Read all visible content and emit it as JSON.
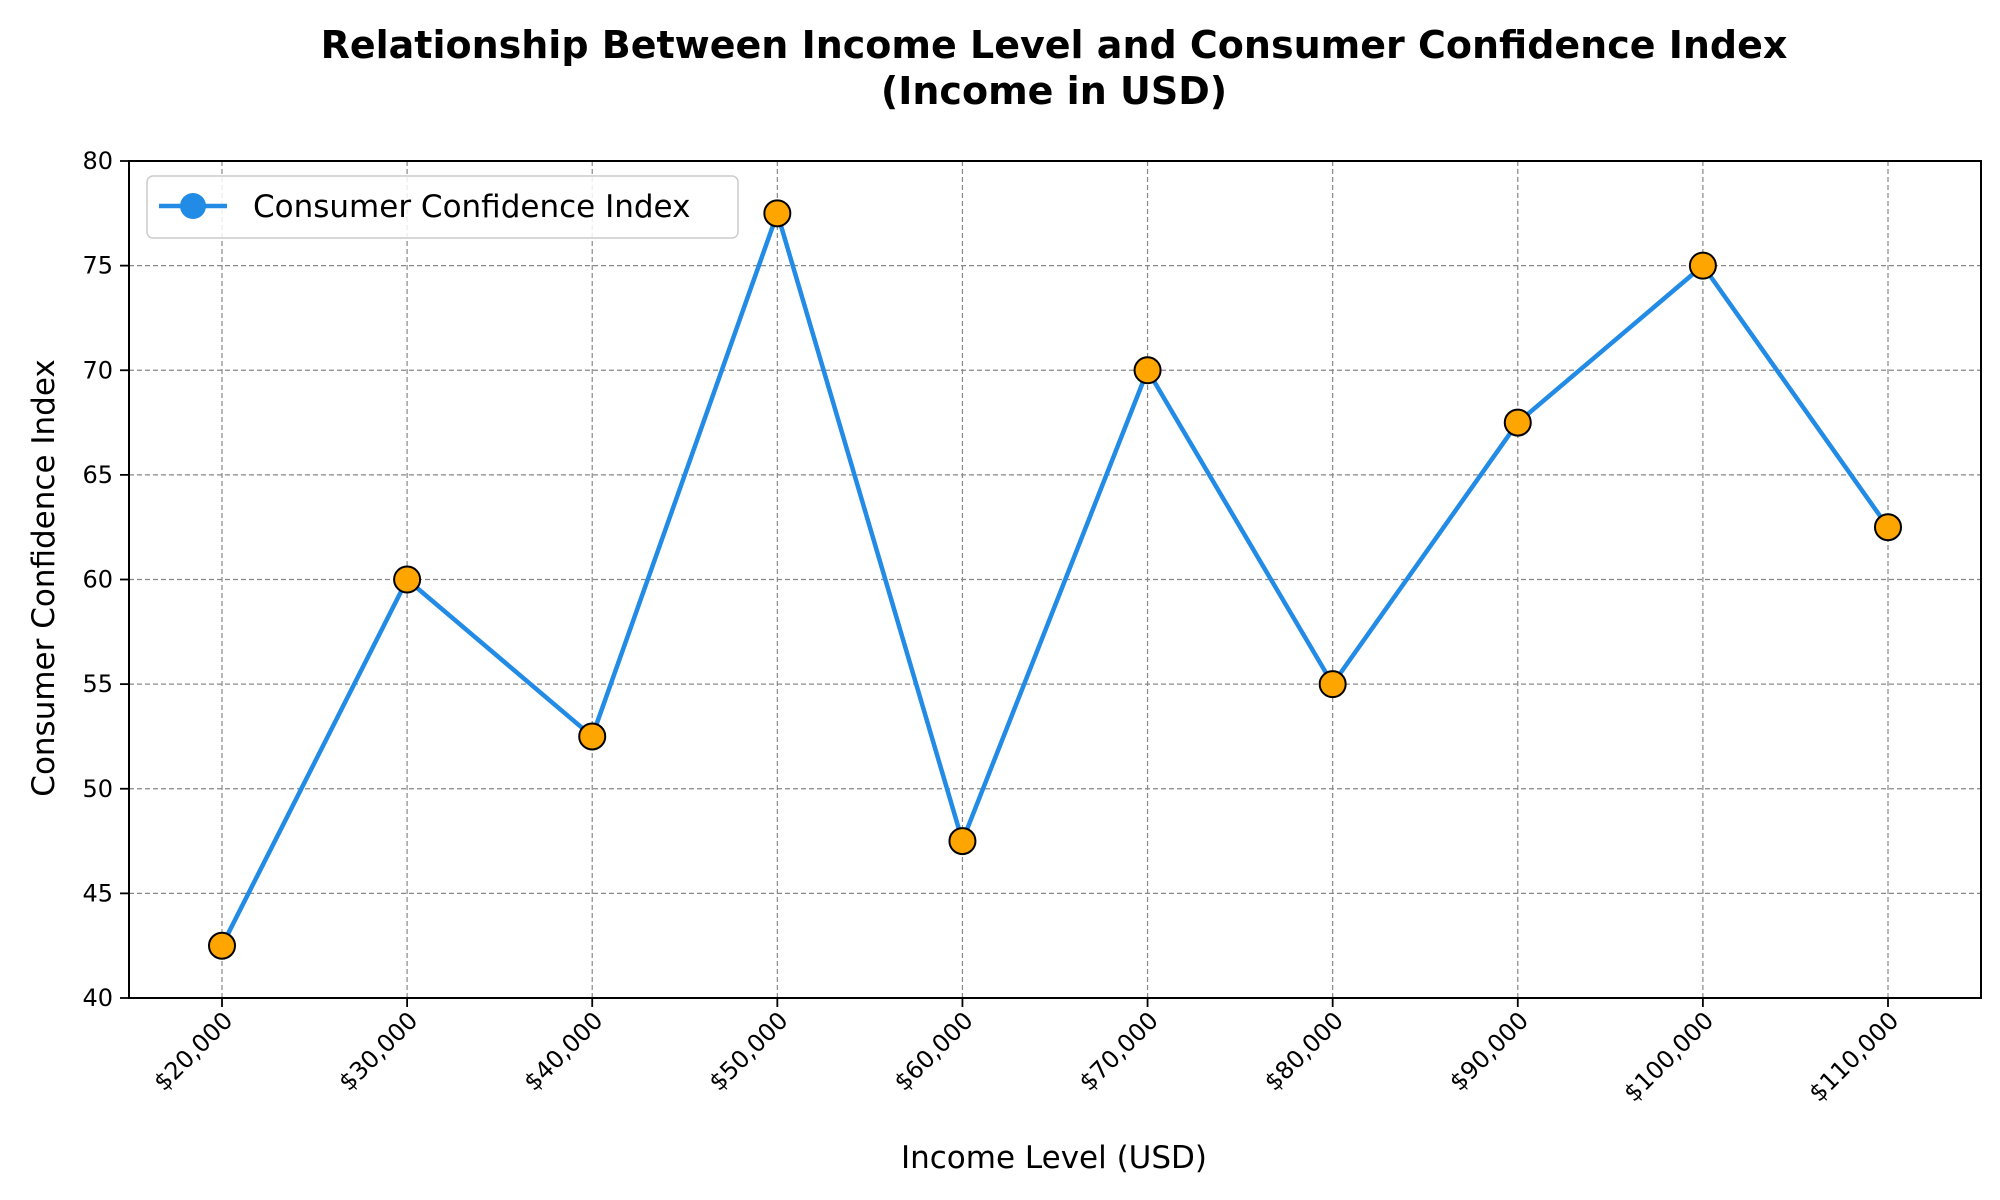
{
  "chart_data": {
    "type": "line",
    "title_line1": "Relationship Between Income Level and Consumer Confidence Index",
    "title_line2": "(Income in USD)",
    "xlabel": "Income Level (USD)",
    "ylabel": "Consumer Confidence Index",
    "categories": [
      "$20,000",
      "$30,000",
      "$40,000",
      "$50,000",
      "$60,000",
      "$70,000",
      "$80,000",
      "$90,000",
      "$100,000",
      "$110,000"
    ],
    "series": [
      {
        "name": "Consumer Confidence Index",
        "values": [
          42.5,
          60,
          52.5,
          77.5,
          47.5,
          70,
          55,
          67.5,
          75,
          62.5
        ],
        "line_color": "#228be6",
        "marker_color": "#ffa500",
        "marker_edge_color": "#000000"
      }
    ],
    "ylim": [
      40,
      80
    ],
    "yticks": [
      40,
      45,
      50,
      55,
      60,
      65,
      70,
      75,
      80
    ],
    "grid": true,
    "legend_position": "top-left"
  }
}
